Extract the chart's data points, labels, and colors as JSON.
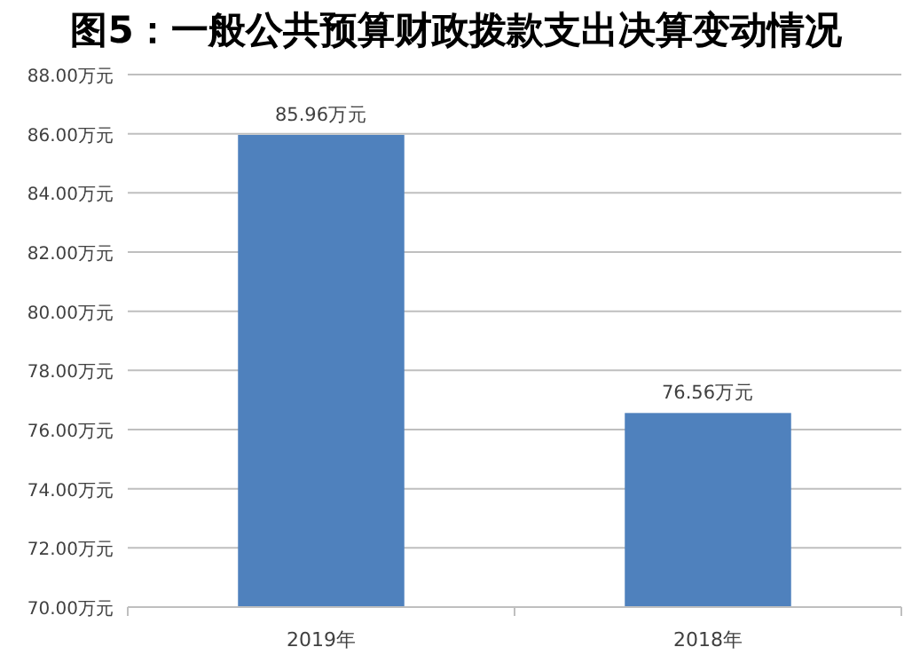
{
  "chart_data": {
    "type": "bar",
    "title": "图5：一般公共预算财政拨款支出决算变动情况",
    "categories": [
      "2019年",
      "2018年"
    ],
    "values": [
      85.96,
      76.56
    ],
    "value_labels": [
      "85.96万元",
      "76.56万元"
    ],
    "color": "#4f81bd",
    "ylim": [
      70,
      88
    ],
    "yticks": [
      {
        "value": 70,
        "label": "70.00万元"
      },
      {
        "value": 72,
        "label": "72.00万元"
      },
      {
        "value": 74,
        "label": "74.00万元"
      },
      {
        "value": 76,
        "label": "76.00万元"
      },
      {
        "value": 78,
        "label": "78.00万元"
      },
      {
        "value": 80,
        "label": "80.00万元"
      },
      {
        "value": 82,
        "label": "82.00万元"
      },
      {
        "value": 84,
        "label": "84.00万元"
      },
      {
        "value": 86,
        "label": "86.00万元"
      },
      {
        "value": 88,
        "label": "88.00万元"
      }
    ],
    "grid": "y"
  }
}
